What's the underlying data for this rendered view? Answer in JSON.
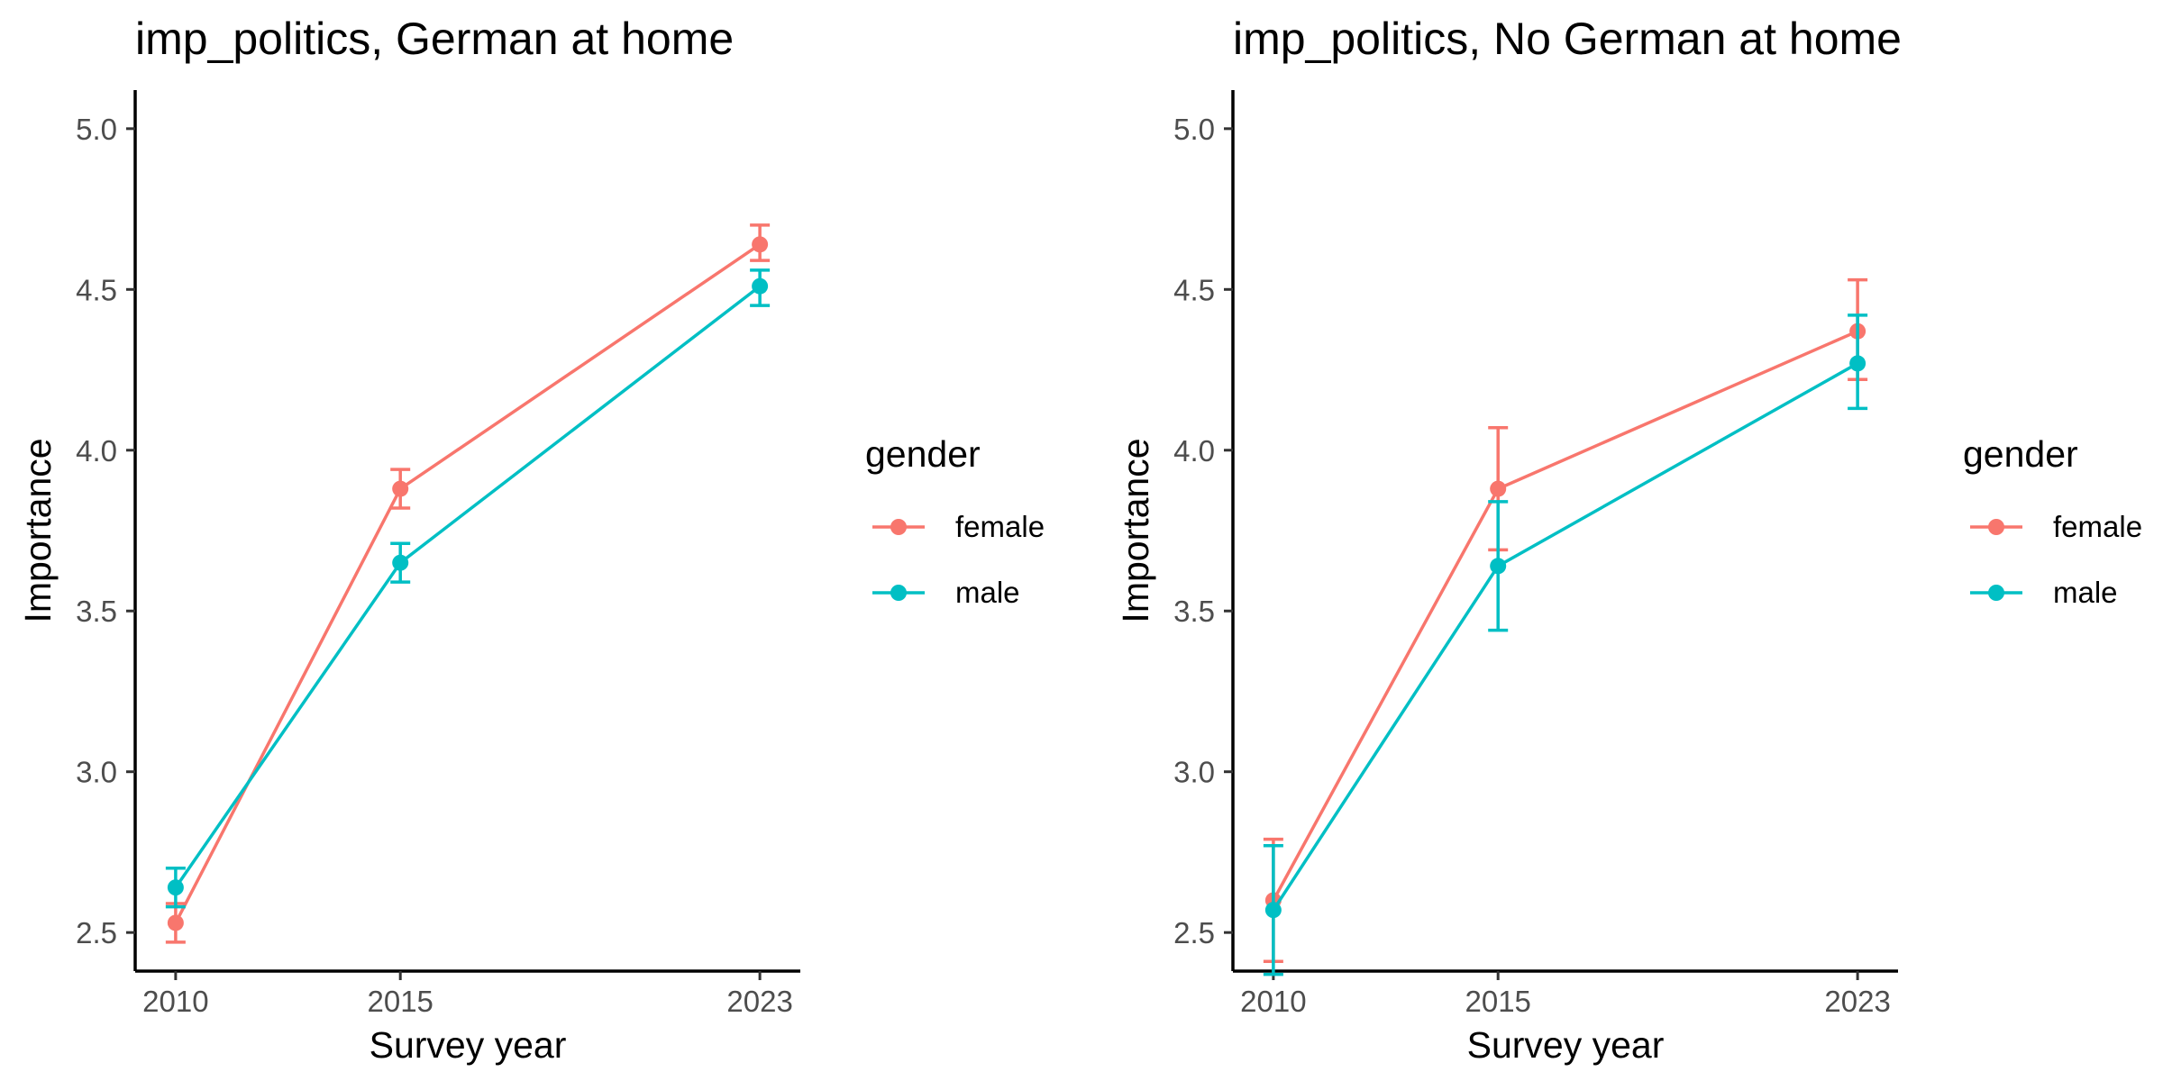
{
  "chart_data": [
    {
      "type": "line",
      "title": "imp_politics, German at home",
      "xlabel": "Survey year",
      "ylabel": "Importance",
      "x": [
        2010,
        2015,
        2023
      ],
      "xlim": [
        2009.1,
        2023.9
      ],
      "ylim": [
        2.38,
        5.12
      ],
      "yticks": [
        "2.5",
        "3.0",
        "3.5",
        "4.0",
        "4.5",
        "5.0"
      ],
      "xticks": [
        "2010",
        "2015",
        "2023"
      ],
      "grid": false,
      "legend": {
        "title": "gender",
        "placement": "right"
      },
      "series": [
        {
          "name": "female",
          "color": "#F8766D",
          "values": [
            2.53,
            3.88,
            4.64
          ],
          "lower": [
            2.47,
            3.82,
            4.59
          ],
          "upper": [
            2.59,
            3.94,
            4.7
          ]
        },
        {
          "name": "male",
          "color": "#00BFC4",
          "values": [
            2.64,
            3.65,
            4.51
          ],
          "lower": [
            2.58,
            3.59,
            4.45
          ],
          "upper": [
            2.7,
            3.71,
            4.56
          ]
        }
      ]
    },
    {
      "type": "line",
      "title": "imp_politics, No German at home",
      "xlabel": "Survey year",
      "ylabel": "Importance",
      "x": [
        2010,
        2015,
        2023
      ],
      "xlim": [
        2009.1,
        2023.9
      ],
      "ylim": [
        2.38,
        5.12
      ],
      "yticks": [
        "2.5",
        "3.0",
        "3.5",
        "4.0",
        "4.5",
        "5.0"
      ],
      "xticks": [
        "2010",
        "2015",
        "2023"
      ],
      "grid": false,
      "legend": {
        "title": "gender",
        "placement": "right"
      },
      "series": [
        {
          "name": "female",
          "color": "#F8766D",
          "values": [
            2.6,
            3.88,
            4.37
          ],
          "lower": [
            2.41,
            3.69,
            4.22
          ],
          "upper": [
            2.79,
            4.07,
            4.53
          ]
        },
        {
          "name": "male",
          "color": "#00BFC4",
          "values": [
            2.57,
            3.64,
            4.27
          ],
          "lower": [
            2.37,
            3.44,
            4.13
          ],
          "upper": [
            2.77,
            3.84,
            4.42
          ]
        }
      ]
    }
  ]
}
